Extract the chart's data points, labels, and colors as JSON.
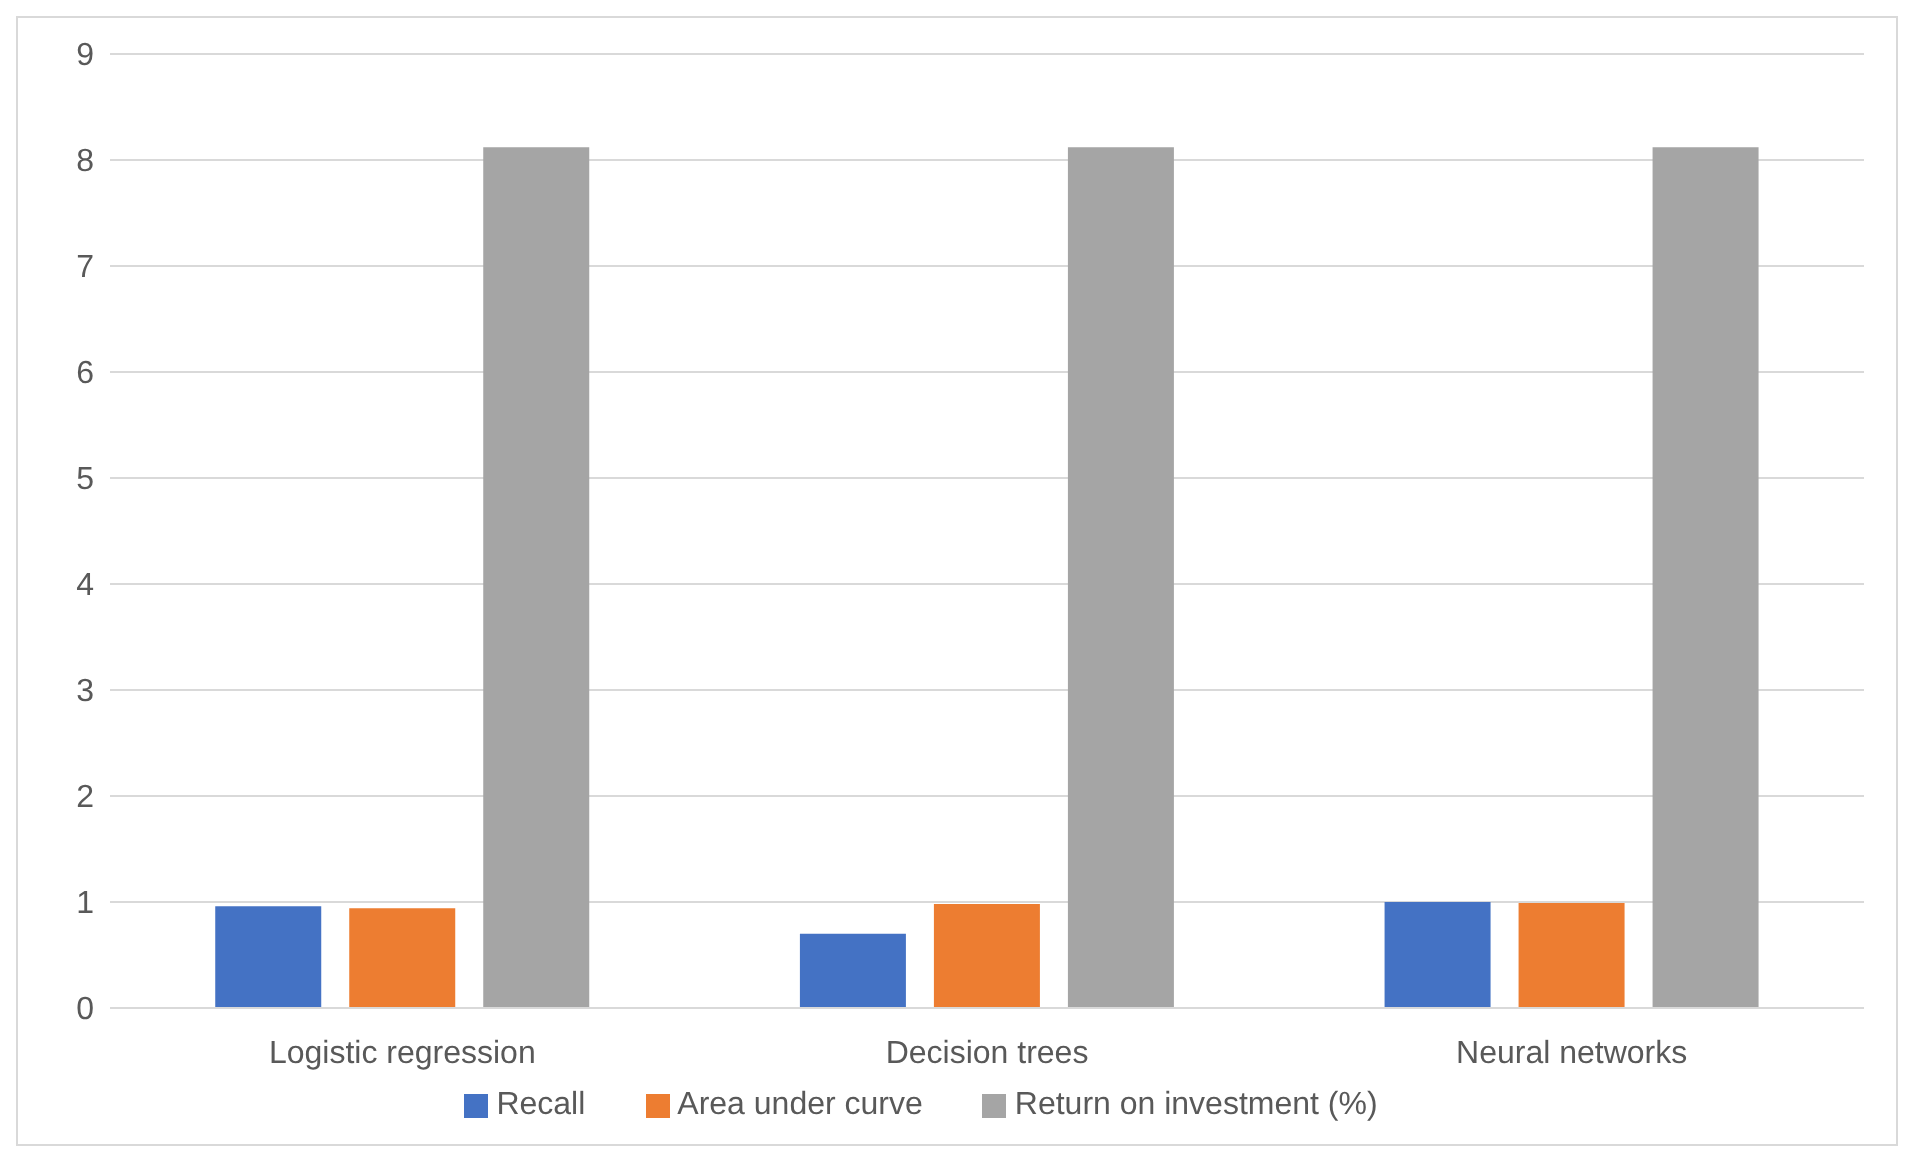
{
  "chart_data": {
    "type": "bar",
    "categories": [
      "Logistic regression",
      "Decision trees",
      "Neural networks"
    ],
    "series": [
      {
        "name": "Recall",
        "color": "#4472c4",
        "values": [
          0.96,
          0.7,
          1.0
        ]
      },
      {
        "name": "Area under curve",
        "color": "#ed7d31",
        "values": [
          0.94,
          0.98,
          0.99
        ]
      },
      {
        "name": "Return on investment (%)",
        "color": "#a5a5a5",
        "values": [
          8.12,
          8.12,
          8.12
        ]
      }
    ],
    "ylim": [
      0,
      9
    ],
    "yticks": [
      0,
      1,
      2,
      3,
      4,
      5,
      6,
      7,
      8,
      9
    ],
    "grid": "y",
    "legend": "bottom"
  }
}
